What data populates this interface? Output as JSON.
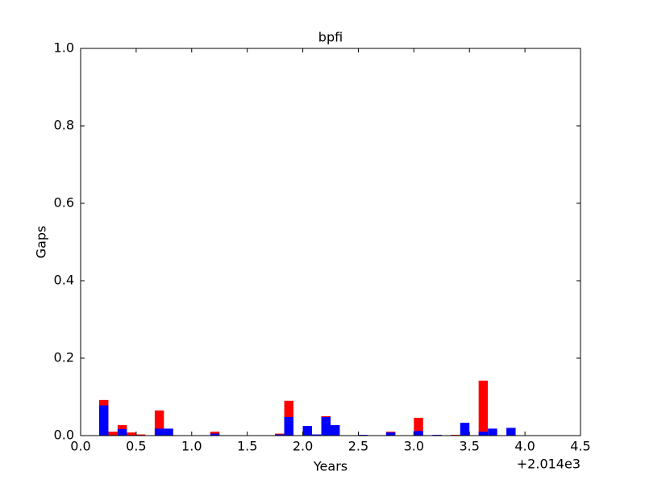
{
  "chart_data": {
    "type": "bar",
    "title": "bpfi",
    "x_label": "Years",
    "y_label": "Gaps",
    "x_offset_label": "+2.014e3",
    "x": [
      0.167,
      0.25,
      0.333,
      0.417,
      0.5,
      0.667,
      0.75,
      1.167,
      1.75,
      1.833,
      2.0,
      2.083,
      2.167,
      2.25,
      2.5,
      2.75,
      3.0,
      3.167,
      3.333,
      3.417,
      3.583,
      3.667,
      3.833
    ],
    "series": [
      {
        "name": "red",
        "color": "#ff0000",
        "values": [
          0.092,
          0.01,
          0.027,
          0.008,
          0.003,
          0.065,
          null,
          0.01,
          0.005,
          0.09,
          null,
          null,
          0.05,
          null,
          null,
          0.01,
          0.046,
          null,
          0.002,
          null,
          0.142,
          null,
          null
        ]
      },
      {
        "name": "blue",
        "color": "#0000ff",
        "values": [
          0.078,
          null,
          0.017,
          null,
          null,
          0.018,
          0.018,
          0.005,
          0.003,
          0.048,
          0.025,
          0.003,
          0.048,
          0.027,
          0.002,
          0.008,
          0.012,
          0.002,
          null,
          0.033,
          0.01,
          0.018,
          0.02
        ]
      }
    ],
    "xlim": [
      0,
      4.5
    ],
    "xticks": [
      {
        "value": 0,
        "label": "0.0"
      },
      0.5,
      {
        "value": 1,
        "label": "1.0"
      },
      1.5,
      {
        "value": 2,
        "label": "2.0"
      },
      2.5,
      {
        "value": 3,
        "label": "3.0"
      },
      3.5,
      {
        "value": 4,
        "label": "4.0"
      },
      4.5
    ],
    "ylim": [
      0,
      1
    ],
    "yticks": [
      {
        "value": 0,
        "label": "0.0"
      },
      0.2,
      0.4,
      0.6,
      0.8,
      {
        "value": 1,
        "label": "1.0"
      }
    ]
  }
}
